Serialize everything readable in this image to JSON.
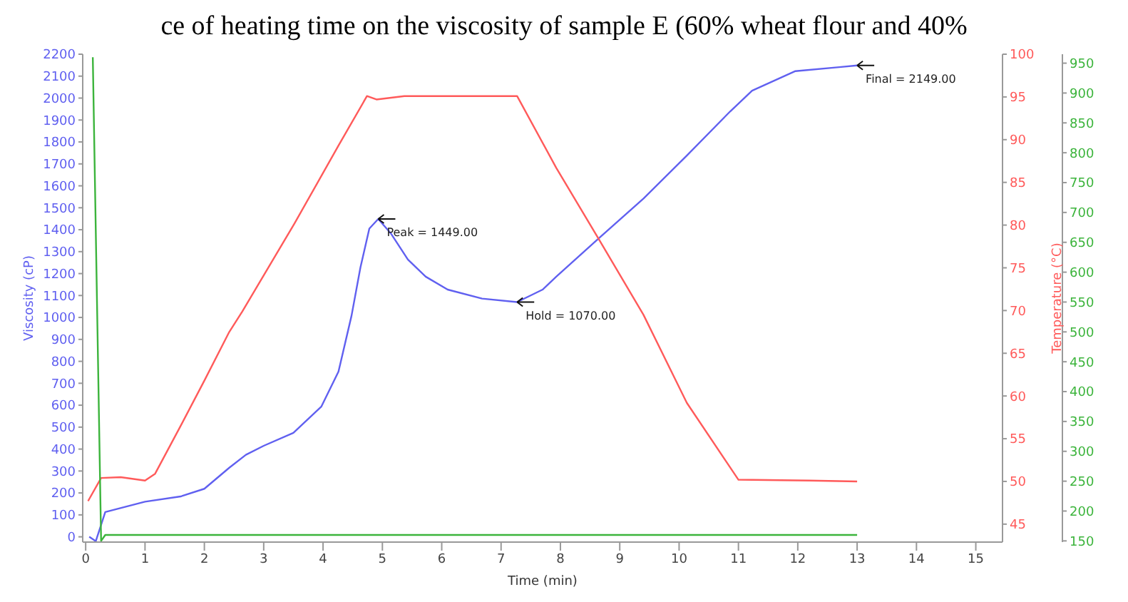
{
  "chart_data": {
    "type": "line",
    "title": "ce of heating time on the viscosity of sample E (60% wheat flour and 40%",
    "xlabel": "Time (min)",
    "ylabel": "Viscosity (cP)",
    "y2label": "Temperature (°C)",
    "xlim": [
      -0.05,
      15.45
    ],
    "xticks": [
      0,
      1,
      2,
      3,
      4,
      5,
      6,
      7,
      8,
      9,
      10,
      11,
      12,
      13,
      14,
      15
    ],
    "ylim": [
      -24,
      2200
    ],
    "yticks": [
      0,
      100,
      200,
      300,
      400,
      500,
      600,
      700,
      800,
      900,
      1000,
      1100,
      1200,
      1300,
      1400,
      1500,
      1600,
      1700,
      1800,
      1900,
      2000,
      2100,
      2200
    ],
    "y2lim": [
      42.9,
      100
    ],
    "y2ticks": [
      45,
      50,
      55,
      60,
      65,
      70,
      75,
      80,
      85,
      90,
      95,
      100
    ],
    "y3lim": [
      148,
      965
    ],
    "y3ticks": [
      150,
      200,
      250,
      300,
      350,
      400,
      450,
      500,
      550,
      600,
      650,
      700,
      750,
      800,
      850,
      900,
      950
    ],
    "grid": false,
    "legend": false,
    "marker": "none",
    "line_style": "solid",
    "series": [
      {
        "color": "#6060f0",
        "x": [
          0.06,
          0.17,
          0.33,
          1.0,
          1.6,
          2.0,
          2.42,
          2.7,
          3.0,
          3.5,
          3.97,
          4.26,
          4.48,
          4.63,
          4.78,
          4.93,
          5.14,
          5.43,
          5.73,
          6.1,
          6.68,
          7.27,
          7.7,
          7.93,
          8.66,
          9.4,
          10.13,
          10.86,
          11.23,
          11.96,
          12.7,
          13.0
        ],
        "values": [
          0,
          -20,
          113,
          160,
          184,
          219,
          315,
          374,
          415,
          474,
          593,
          753,
          1008,
          1228,
          1405,
          1449,
          1384,
          1264,
          1186,
          1127,
          1086,
          1070,
          1127,
          1186,
          1364,
          1542,
          1738,
          1939,
          2034,
          2123,
          2141,
          2149
        ]
      },
      {
        "color": "#ff5a5a",
        "axis": "y2",
        "x": [
          0.04,
          0.26,
          0.59,
          1.0,
          1.17,
          1.6,
          2.0,
          2.42,
          2.64,
          3.52,
          4.26,
          4.74,
          4.9,
          5.37,
          7.27,
          7.93,
          8.66,
          9.4,
          10.13,
          11.0,
          12.2,
          13.0
        ],
        "values": [
          47.7,
          50.4,
          50.5,
          50.1,
          50.9,
          56.5,
          61.8,
          67.5,
          69.9,
          80.2,
          89.3,
          95.1,
          94.7,
          95.1,
          95.1,
          86.7,
          78.2,
          69.5,
          59.2,
          50.2,
          50.1,
          50.0
        ]
      },
      {
        "color": "#3cb43c",
        "axis": "y3",
        "x": [
          0.12,
          0.26,
          0.33,
          13.0
        ],
        "values": [
          960,
          150,
          160,
          160
        ]
      }
    ],
    "annotations": [
      {
        "text": "Peak = 1449.00",
        "x": 4.93,
        "y": 1449
      },
      {
        "text": "Hold = 1070.00",
        "x": 7.27,
        "y": 1070
      },
      {
        "text": "Final = 2149.00",
        "x": 13.0,
        "y": 2149
      }
    ]
  }
}
